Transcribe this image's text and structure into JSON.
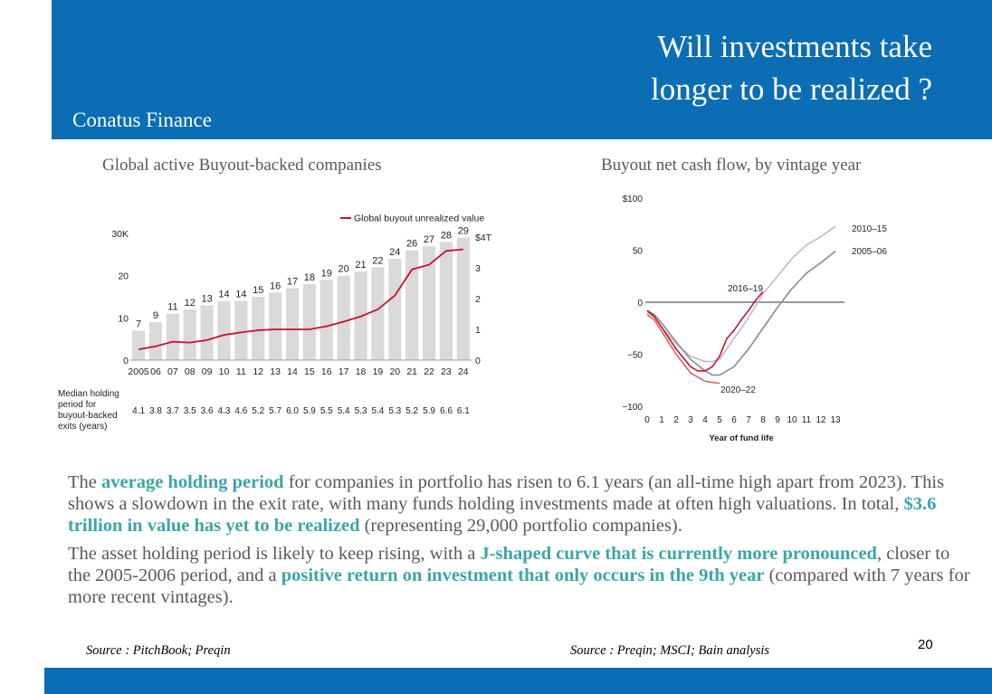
{
  "header": {
    "title_line1": "Will investments take",
    "title_line2": "longer to be realized ?",
    "brand": "Conatus Finance"
  },
  "chart_left_title": "Global active Buyout-backed companies",
  "chart_right_title": "Buyout net cash flow, by vintage year",
  "chart_data": [
    {
      "type": "bar",
      "title": "Global active Buyout-backed companies",
      "categories": [
        "2005",
        "06",
        "07",
        "08",
        "09",
        "10",
        "11",
        "12",
        "13",
        "14",
        "15",
        "16",
        "17",
        "18",
        "19",
        "20",
        "21",
        "22",
        "23",
        "24"
      ],
      "series": [
        {
          "values": [
            7,
            9,
            11,
            12,
            13,
            14,
            14,
            15,
            16,
            17,
            18,
            19,
            20,
            21,
            22,
            24,
            26,
            27,
            28,
            29
          ]
        }
      ],
      "line_series": {
        "name": "Global buyout unrealized value",
        "values": [
          0.35,
          0.45,
          0.6,
          0.57,
          0.65,
          0.82,
          0.9,
          0.97,
          1.0,
          1.0,
          1.0,
          1.1,
          1.25,
          1.42,
          1.65,
          2.1,
          2.95,
          3.1,
          3.55,
          3.6
        ]
      },
      "ylim_left": [
        0,
        30
      ],
      "yticks_left": [
        "0",
        "10",
        "20",
        "30K"
      ],
      "ylim_right": [
        0,
        4
      ],
      "yticks_right": [
        "0",
        "1",
        "2",
        "3",
        "$4T"
      ],
      "bar_labels": [
        "7",
        "9",
        "11",
        "12",
        "13",
        "14",
        "14",
        "15",
        "16",
        "17",
        "18",
        "19",
        "20",
        "21",
        "22",
        "24",
        "26",
        "27",
        "28",
        "29"
      ],
      "median_label_lines": [
        "Median holding",
        "period for",
        "buyout-backed",
        "exits (years)"
      ],
      "median_values": [
        "4.1",
        "3.8",
        "3.7",
        "3.5",
        "3.6",
        "4.3",
        "4.6",
        "5.2",
        "5.7",
        "6.0",
        "5.9",
        "5.5",
        "5.4",
        "5.3",
        "5.4",
        "5.3",
        "5.2",
        "5.9",
        "6.6",
        "6.1"
      ]
    },
    {
      "type": "line",
      "title": "Buyout net cash flow, by vintage year",
      "xlabel": "Year of fund life",
      "x_ticks": [
        "0",
        "1",
        "2",
        "3",
        "4",
        "5",
        "6",
        "7",
        "8",
        "9",
        "10",
        "11",
        "12",
        "13"
      ],
      "y_ticks": [
        "$100",
        "50",
        "0",
        "−50",
        "−100"
      ],
      "xlim": [
        0,
        13
      ],
      "ylim": [
        -100,
        100
      ],
      "series": [
        {
          "name": "2010–15",
          "color": "#bdbdbd",
          "x": [
            0,
            0.5,
            1,
            2,
            3,
            4,
            4.5,
            5,
            6,
            7,
            8,
            9,
            10,
            11,
            12,
            13
          ],
          "y": [
            -10,
            -14,
            -24,
            -40,
            -52,
            -57,
            -57,
            -55,
            -35,
            -15,
            8,
            25,
            42,
            55,
            63,
            73
          ]
        },
        {
          "name": "2005–06",
          "color": "#8c8c8c",
          "x": [
            0,
            0.5,
            1,
            2,
            3,
            4,
            4.5,
            5,
            6,
            7,
            8,
            9,
            10,
            11,
            12,
            13
          ],
          "y": [
            -8,
            -12,
            -20,
            -38,
            -55,
            -66,
            -70,
            -70,
            -62,
            -45,
            -25,
            -5,
            13,
            28,
            38,
            49
          ]
        },
        {
          "name": "2016–19",
          "color": "#c8102e",
          "x": [
            0,
            0.5,
            1,
            2,
            3,
            3.5,
            4,
            4.5,
            5,
            5.5,
            6,
            6.5,
            7,
            7.5,
            8
          ],
          "y": [
            -8,
            -14,
            -24,
            -45,
            -62,
            -66,
            -66,
            -62,
            -52,
            -35,
            -27,
            -17,
            -8,
            2,
            10
          ]
        },
        {
          "name": "2020–22",
          "color": "#e06060",
          "x": [
            0,
            0.5,
            1,
            2,
            3,
            4,
            5
          ],
          "y": [
            -12,
            -17,
            -28,
            -50,
            -68,
            -76,
            -78
          ]
        }
      ]
    }
  ],
  "body": {
    "p1": [
      {
        "t": "The ",
        "hl": false
      },
      {
        "t": "average holding period",
        "hl": true
      },
      {
        "t": " for companies in portfolio has risen to 6.1 years (an all-time high apart from 2023). This shows a slowdown in the exit rate, with many funds holding investments made at often high valuations. In total, ",
        "hl": false
      },
      {
        "t": "$3.6 trillion in value has yet to be realized",
        "hl": true
      },
      {
        "t": " (representing 29,000 portfolio companies).",
        "hl": false
      }
    ],
    "p2": [
      {
        "t": "The asset holding period is likely to keep rising, with a ",
        "hl": false
      },
      {
        "t": "J-shaped curve that is currently more pronounced",
        "hl": true
      },
      {
        "t": ", closer to the 2005-2006 period, and a ",
        "hl": false
      },
      {
        "t": "positive return on investment that only occurs in the 9th year",
        "hl": true
      },
      {
        "t": " (compared with 7 years for more recent vintages).",
        "hl": false
      }
    ]
  },
  "sources": {
    "left": "Source : PitchBook; Preqin",
    "right": "Source : Preqin; MSCI; Bain analysis"
  },
  "page_number": "20",
  "colors": {
    "header_blue": "#0b6db3",
    "highlight": "#3ba5a8",
    "bar_gray": "#d9d9d9",
    "line_red": "#c8102e"
  }
}
